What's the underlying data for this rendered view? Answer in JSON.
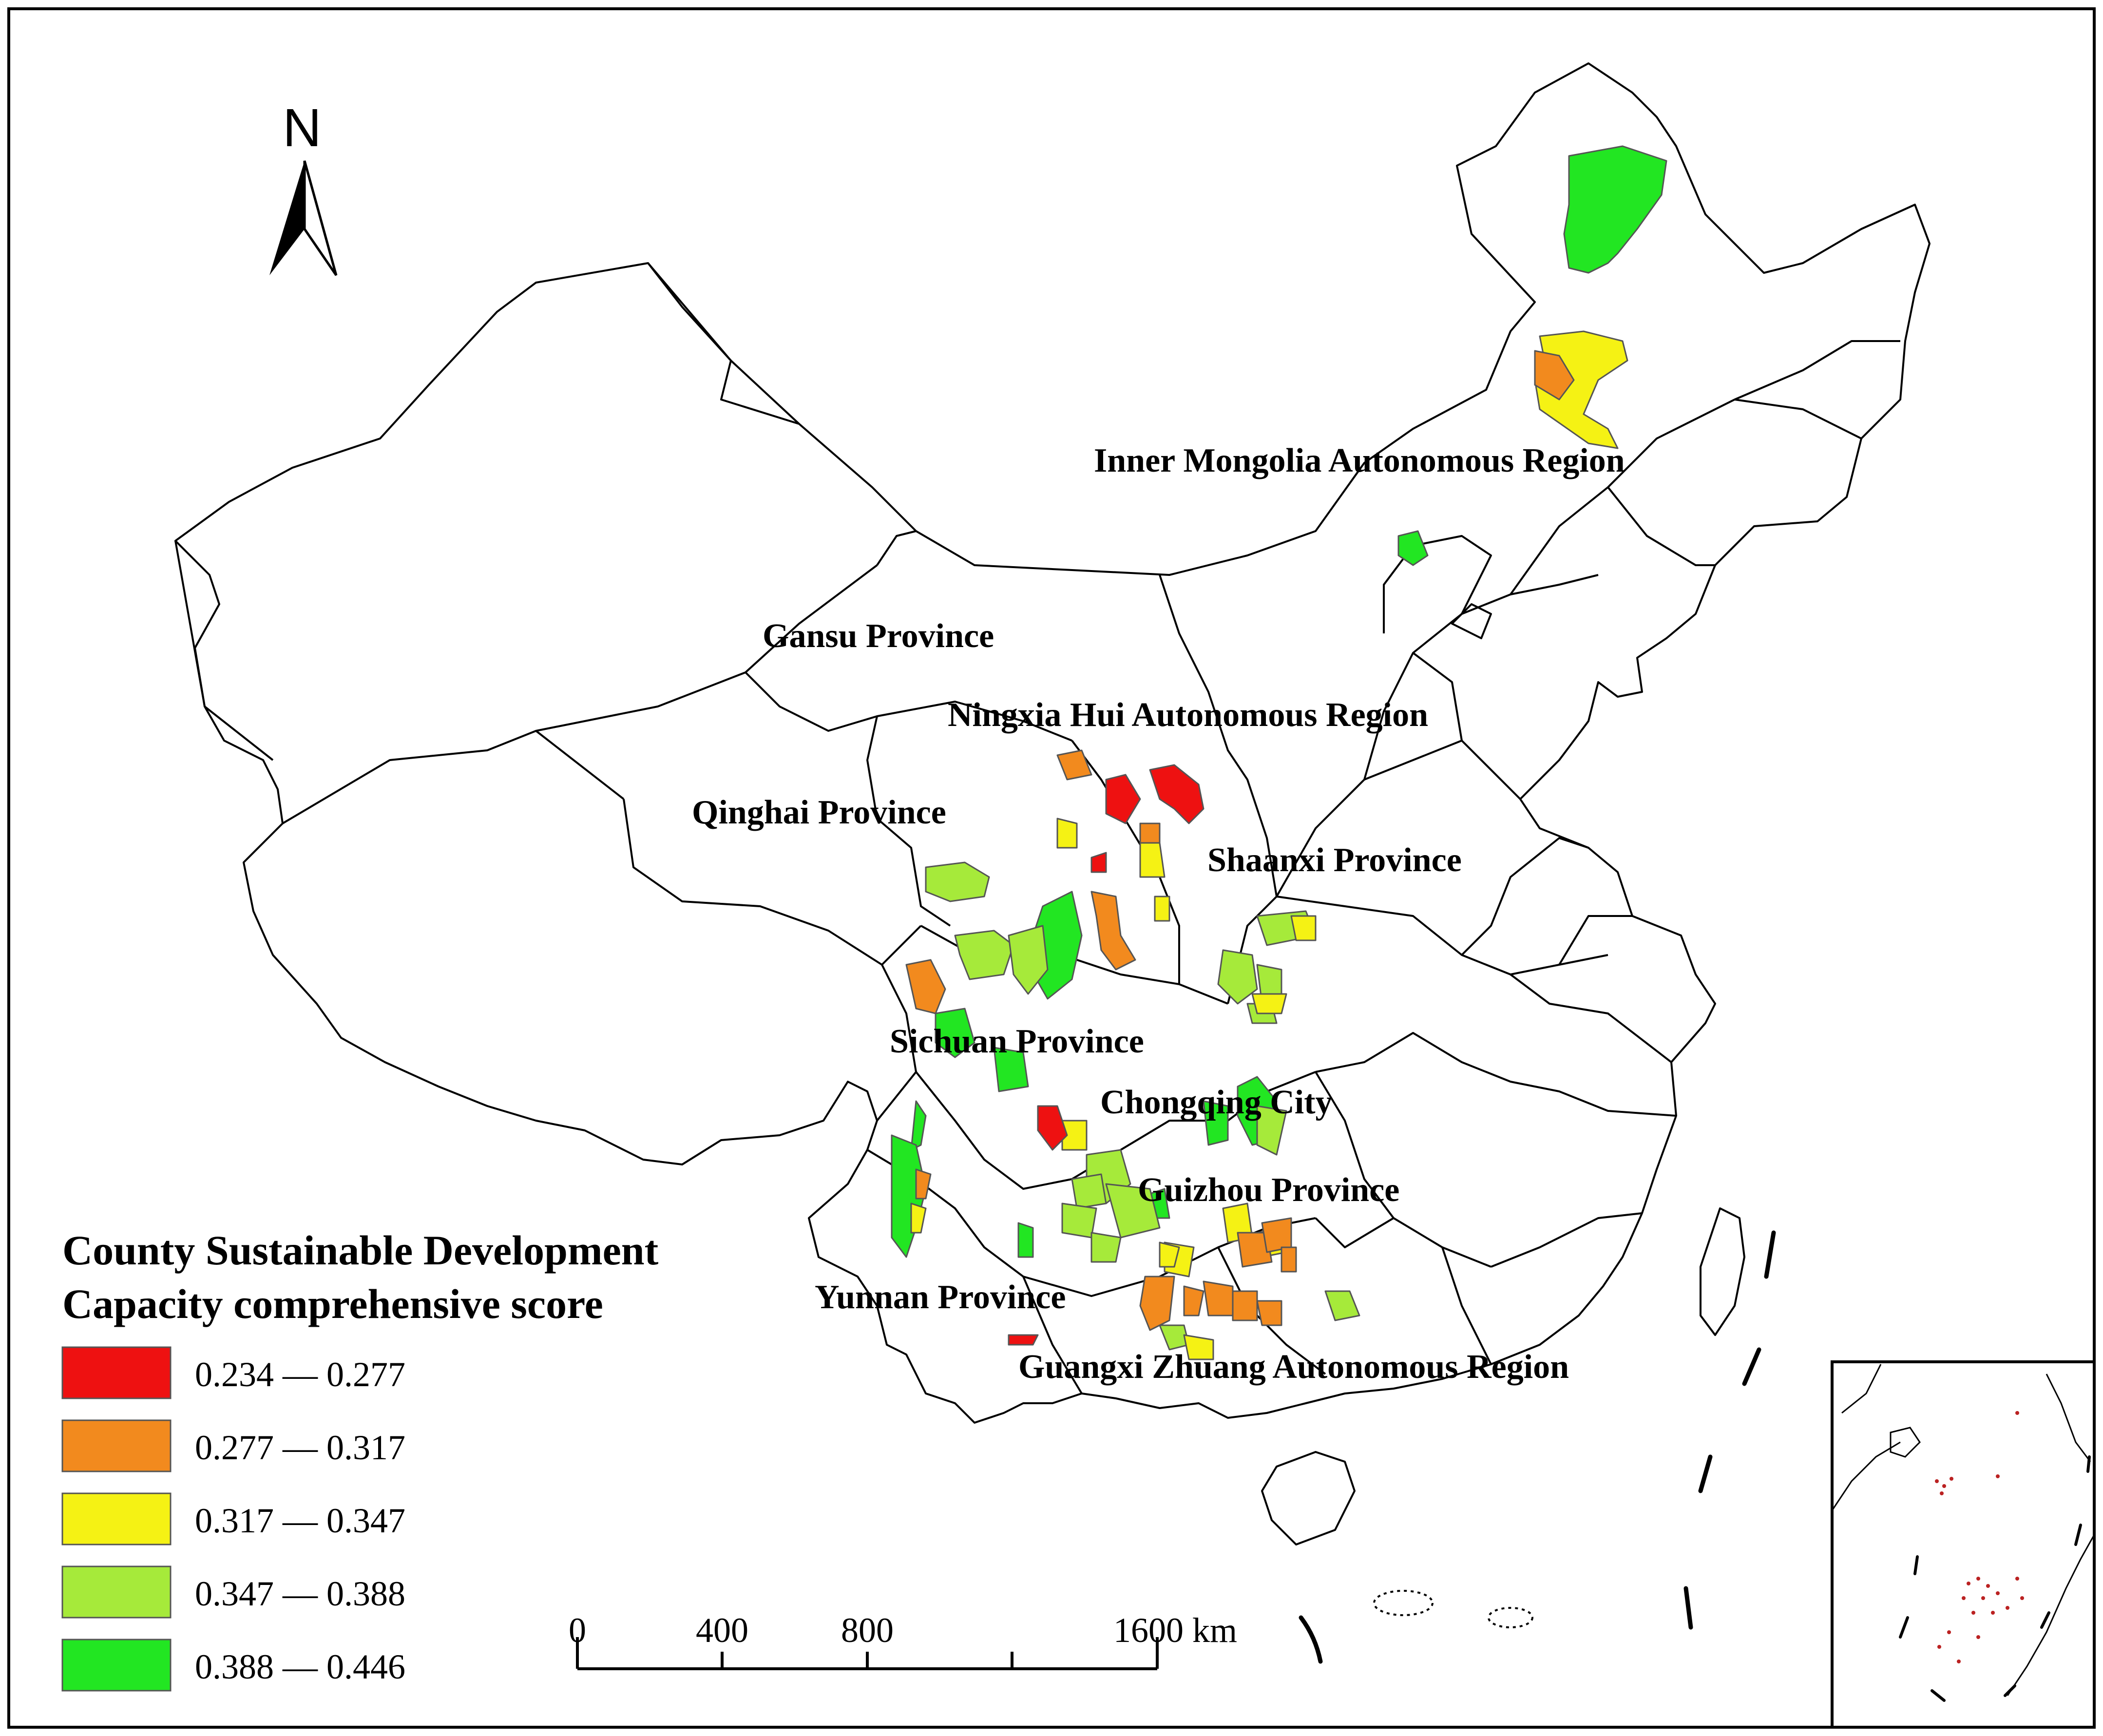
{
  "north_arrow": {
    "label": "N"
  },
  "labels": {
    "inner_mongolia": "Inner Mongolia Autonomous Region",
    "gansu": "Gansu Province",
    "ningxia": "Ningxia Hui Autonomous Region",
    "qinghai": "Qinghai Province",
    "shaanxi": "Shaanxi Province",
    "sichuan": "Sichuan Province",
    "chongqing": "Chongqing City",
    "guizhou": "Guizhou Province",
    "yunnan": "Yunnan Province",
    "guangxi": "Guangxi Zhuang Autonomous Region"
  },
  "legend": {
    "title_line1": "County Sustainable Development",
    "title_line2": "Capacity comprehensive score",
    "classes": [
      {
        "range": "0.234 — 0.277",
        "color": "#ee1111"
      },
      {
        "range": "0.277 — 0.317",
        "color": "#f28a1e"
      },
      {
        "range": "0.317 — 0.347",
        "color": "#f5f214"
      },
      {
        "range": "0.347 — 0.388",
        "color": "#a6ea3a"
      },
      {
        "range": "0.388 — 0.446",
        "color": "#22e622"
      }
    ]
  },
  "scale_bar": {
    "tick_0": "0",
    "tick_400": "400",
    "tick_800": "800",
    "tick_1600": "1600 km"
  }
}
